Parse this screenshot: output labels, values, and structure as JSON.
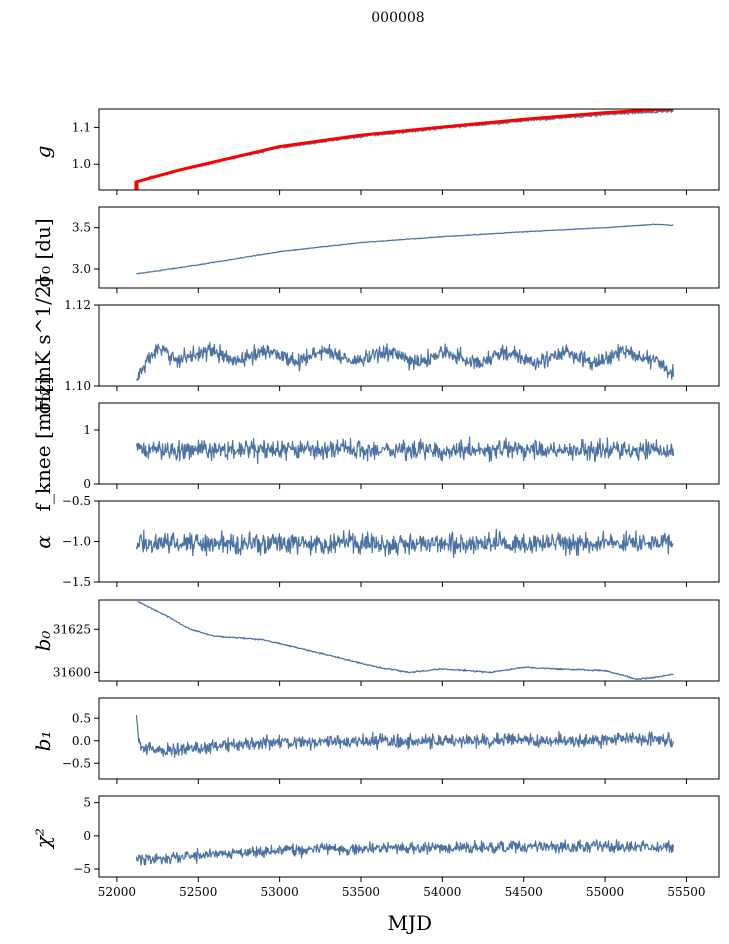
{
  "title": "000008",
  "colors": {
    "line": "#4c72a4",
    "overlay": "#ff0000",
    "axis": "#000000"
  },
  "chart_data": [
    {
      "type": "line",
      "ylabel": "g",
      "ylim": [
        0.93,
        1.15
      ],
      "yticks": [
        1.0,
        1.1
      ],
      "ytick_labels": [
        "1.0",
        "1.1"
      ],
      "series": [
        {
          "name": "g",
          "color": "#4c72a4",
          "noise": 0.002,
          "x": [
            52120,
            52200,
            52400,
            52700,
            53000,
            53500,
            54000,
            54500,
            55000,
            55300,
            55420
          ],
          "y": [
            0.951,
            0.963,
            0.985,
            1.015,
            1.045,
            1.075,
            1.098,
            1.118,
            1.135,
            1.142,
            1.145
          ]
        },
        {
          "name": "g (smoothed)",
          "color": "#ff0000",
          "noise": 0,
          "width": 3,
          "x": [
            52120,
            52200,
            52400,
            52700,
            53000,
            53500,
            54000,
            54500,
            55000,
            55300,
            55420
          ],
          "y": [
            0.952,
            0.962,
            0.986,
            1.017,
            1.048,
            1.079,
            1.101,
            1.122,
            1.14,
            1.148,
            1.15
          ]
        }
      ],
      "extra": {
        "kind": "spike",
        "x": 52120,
        "y0": 0.93,
        "y1": 0.955,
        "color": "#ff0000"
      }
    },
    {
      "type": "line",
      "ylabel": "σ₀ [du]",
      "ylim": [
        2.77,
        3.75
      ],
      "yticks": [
        3.0,
        3.5
      ],
      "ytick_labels": [
        "3.0",
        "3.5"
      ],
      "series": [
        {
          "name": "sigma0_du",
          "color": "#4c72a4",
          "noise": 0.003,
          "x": [
            52120,
            52500,
            53000,
            53500,
            54000,
            54500,
            55000,
            55300,
            55420
          ],
          "y": [
            2.94,
            3.05,
            3.21,
            3.32,
            3.39,
            3.45,
            3.5,
            3.54,
            3.53
          ]
        }
      ]
    },
    {
      "type": "line",
      "ylabel": "σ₀[mK s^1/2]",
      "ylim": [
        1.1,
        1.12
      ],
      "yticks": [
        1.1,
        1.12
      ],
      "ytick_labels": [
        "1.10",
        "1.12"
      ],
      "series": [
        {
          "name": "sigma0_mK",
          "color": "#4c72a4",
          "noise": 0.0012,
          "seasonal": 0.0012,
          "x": [
            52120,
            52250,
            52500,
            53000,
            54000,
            55000,
            55330,
            55420
          ],
          "y": [
            1.101,
            1.1085,
            1.1075,
            1.1075,
            1.107,
            1.107,
            1.1075,
            1.102
          ]
        }
      ]
    },
    {
      "type": "line",
      "ylabel": "f_knee [mHz]",
      "ylim": [
        0,
        1.5
      ],
      "yticks": [
        0,
        1
      ],
      "ytick_labels": [
        "0",
        "1"
      ],
      "series": [
        {
          "name": "fknee",
          "color": "#4c72a4",
          "noise": 0.11,
          "x": [
            52120,
            55420
          ],
          "y": [
            0.63,
            0.63
          ]
        }
      ]
    },
    {
      "type": "line",
      "ylabel": "α",
      "ylim": [
        -1.5,
        -0.5
      ],
      "yticks": [
        -1.5,
        -1.0,
        -0.5
      ],
      "ytick_labels": [
        "−1.5",
        "−1.0",
        "−0.5"
      ],
      "series": [
        {
          "name": "alpha",
          "color": "#4c72a4",
          "noise": 0.08,
          "x": [
            52120,
            55420
          ],
          "y": [
            -1.02,
            -1.02
          ]
        }
      ]
    },
    {
      "type": "line",
      "ylabel": "b₀",
      "ylim": [
        31595,
        31642
      ],
      "yticks": [
        31600,
        31625
      ],
      "ytick_labels": [
        "31600",
        "31625"
      ],
      "series": [
        {
          "name": "b0",
          "color": "#4c72a4",
          "noise": 0.25,
          "x": [
            52130,
            52300,
            52450,
            52600,
            52900,
            53300,
            53600,
            53800,
            54000,
            54300,
            54500,
            54700,
            55000,
            55200,
            55300,
            55420
          ],
          "y": [
            31641,
            31633,
            31625,
            31621,
            31619,
            31610,
            31603,
            31600,
            31602,
            31600,
            31603,
            31602,
            31601,
            31596,
            31597,
            31599
          ]
        }
      ]
    },
    {
      "type": "line",
      "ylabel": "b₁",
      "ylim": [
        -0.85,
        0.95
      ],
      "yticks": [
        -0.5,
        0.0,
        0.5
      ],
      "ytick_labels": [
        "−0.5",
        "0.0",
        "0.5"
      ],
      "series": [
        {
          "name": "b1",
          "color": "#4c72a4",
          "noise": 0.09,
          "x": [
            52120,
            52140,
            52300,
            52800,
            54000,
            54900,
            55200,
            55420
          ],
          "y": [
            0.55,
            -0.15,
            -0.22,
            -0.05,
            0.0,
            0.0,
            0.05,
            0.0
          ]
        }
      ]
    },
    {
      "type": "line",
      "ylabel": "χ²",
      "ylim": [
        -6.2,
        6
      ],
      "yticks": [
        -5,
        0,
        5
      ],
      "ytick_labels": [
        "−5",
        "0",
        "5"
      ],
      "xlabel": "MJD",
      "series": [
        {
          "name": "chi2",
          "color": "#4c72a4",
          "noise": 0.55,
          "x": [
            52120,
            52300,
            52700,
            53200,
            54000,
            55000,
            55420
          ],
          "y": [
            -3.5,
            -3.4,
            -2.5,
            -2.0,
            -1.8,
            -1.6,
            -1.8
          ]
        }
      ]
    }
  ],
  "x_axis": {
    "label": "MJD",
    "xlim": [
      51890,
      55700
    ],
    "ticks": [
      52000,
      52500,
      53000,
      53500,
      54000,
      54500,
      55000,
      55500
    ],
    "tick_labels": [
      "52000",
      "52500",
      "53000",
      "53500",
      "54000",
      "54500",
      "55000",
      "55500"
    ]
  }
}
